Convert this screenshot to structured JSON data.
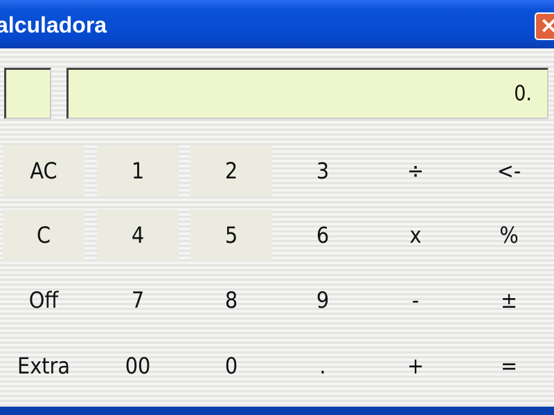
{
  "window": {
    "title": "alculadora",
    "close_icon": "close-icon"
  },
  "display": {
    "memory": "",
    "value": "0."
  },
  "buttons": [
    [
      "AC",
      "1",
      "2",
      "3",
      "÷",
      "<-"
    ],
    [
      "C",
      "4",
      "5",
      "6",
      "x",
      "%"
    ],
    [
      "Off",
      "7",
      "8",
      "9",
      "-",
      "±"
    ],
    [
      "Extra",
      "00",
      "0",
      ".",
      "+",
      "="
    ]
  ],
  "colors": {
    "titlebar": "#0a52d8",
    "display": "#eef6cc",
    "close": "#e0623c"
  }
}
